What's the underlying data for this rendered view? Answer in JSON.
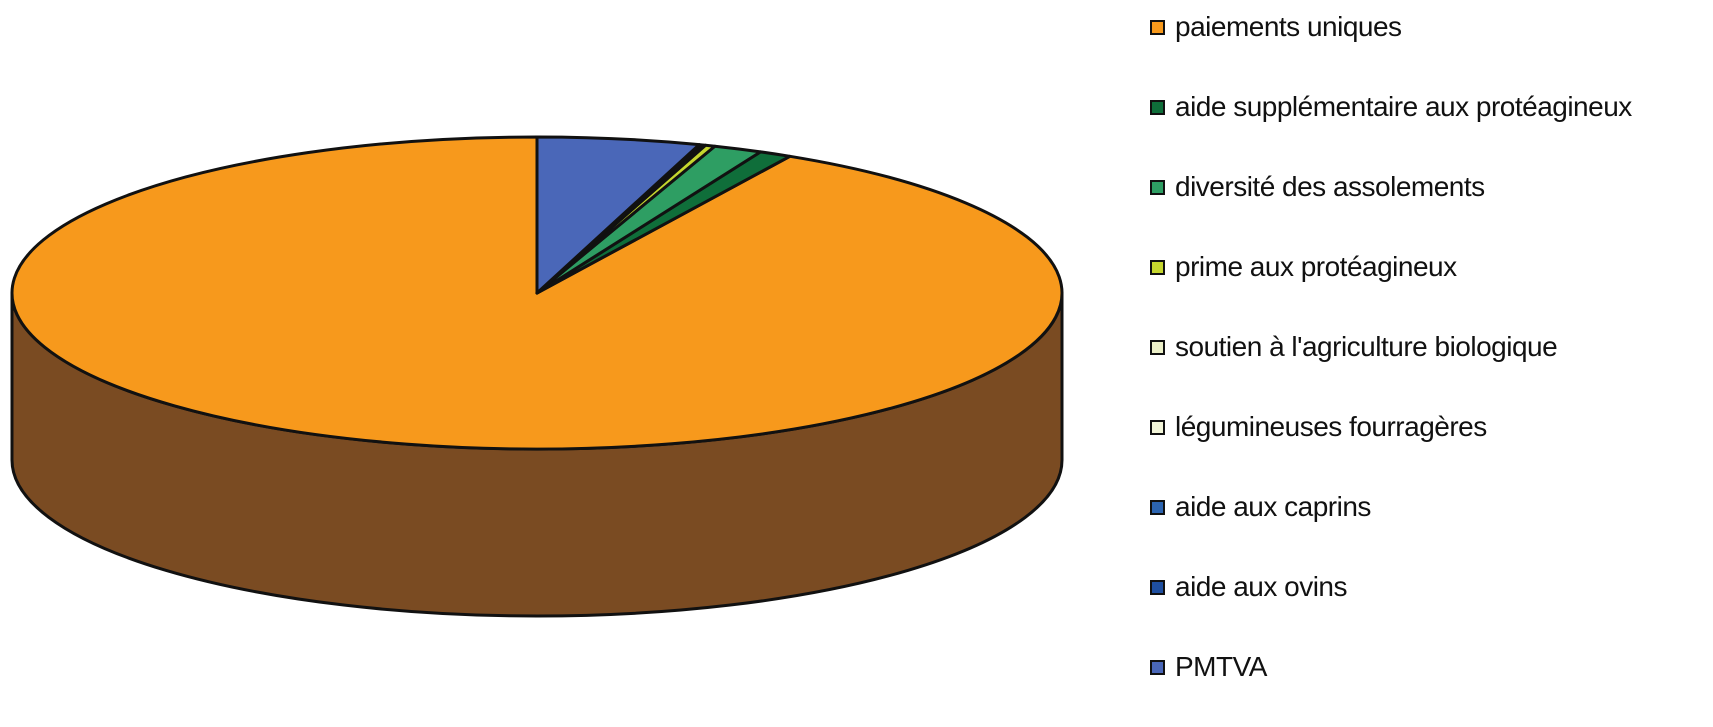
{
  "chart_data": {
    "type": "pie",
    "style": "3d",
    "legend_position": "right",
    "categories": [
      "paiements uniques",
      "aide supplémentaire aux protéagineux",
      "diversité des assolements",
      "prime aux protéagineux",
      "soutien à l'agriculture biologique",
      "légumineuses fourragères",
      "aide aux caprins",
      "aide aux ovins",
      "PMTVA"
    ],
    "values": [
      92.0,
      1.0,
      1.5,
      0.3,
      0.1,
      0.1,
      0.0,
      0.0,
      5.0
    ],
    "colors": [
      "#F7991C",
      "#0F6E3A",
      "#2E9E63",
      "#C5D62E",
      "#ECF0C8",
      "#F2F5D8",
      "#2C64B0",
      "#1F4FA0",
      "#4A67B8"
    ],
    "side_color": "#7A4B22"
  }
}
